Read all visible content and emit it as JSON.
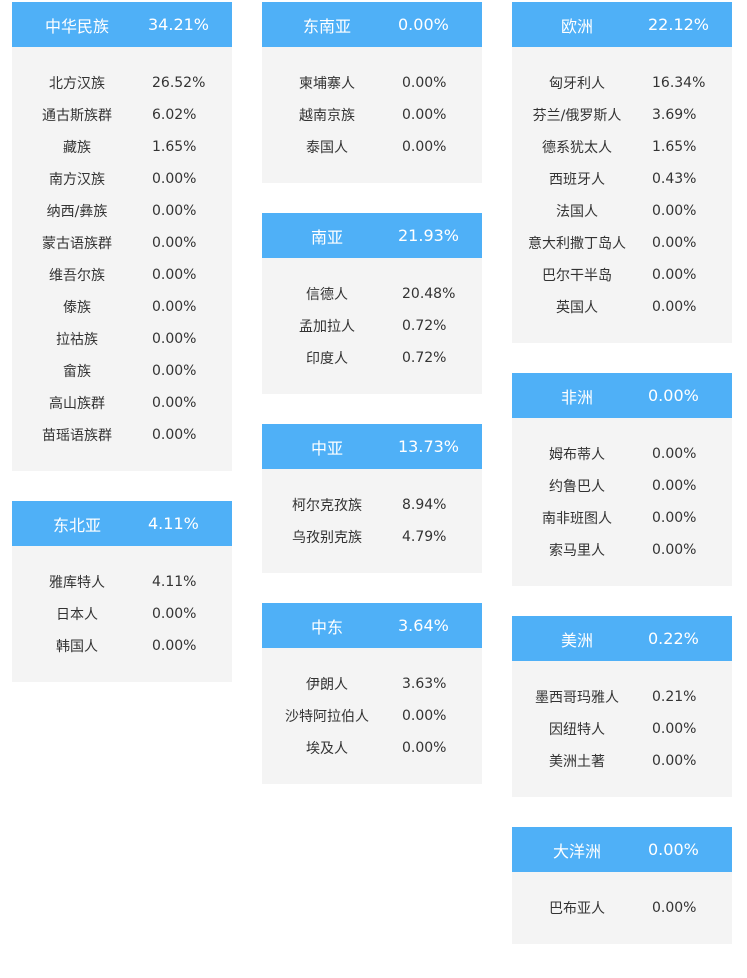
{
  "cards": [
    {
      "key": "c0",
      "region": "中华民族",
      "pct": "34.21%",
      "rows": [
        {
          "name": "北方汉族",
          "val": "26.52%"
        },
        {
          "name": "通古斯族群",
          "val": "6.02%"
        },
        {
          "name": "藏族",
          "val": "1.65%"
        },
        {
          "name": "南方汉族",
          "val": "0.00%"
        },
        {
          "name": "纳西/彝族",
          "val": "0.00%"
        },
        {
          "name": "蒙古语族群",
          "val": "0.00%"
        },
        {
          "name": "维吾尔族",
          "val": "0.00%"
        },
        {
          "name": "傣族",
          "val": "0.00%"
        },
        {
          "name": "拉祜族",
          "val": "0.00%"
        },
        {
          "name": "畲族",
          "val": "0.00%"
        },
        {
          "name": "高山族群",
          "val": "0.00%"
        },
        {
          "name": "苗瑶语族群",
          "val": "0.00%"
        }
      ]
    },
    {
      "key": "c1",
      "region": "东北亚",
      "pct": "4.11%",
      "rows": [
        {
          "name": "雅库特人",
          "val": "4.11%"
        },
        {
          "name": "日本人",
          "val": "0.00%"
        },
        {
          "name": "韩国人",
          "val": "0.00%"
        }
      ]
    },
    {
      "key": "c2",
      "region": "东南亚",
      "pct": "0.00%",
      "rows": [
        {
          "name": "柬埔寨人",
          "val": "0.00%"
        },
        {
          "name": "越南京族",
          "val": "0.00%"
        },
        {
          "name": "泰国人",
          "val": "0.00%"
        }
      ]
    },
    {
      "key": "c3",
      "region": "南亚",
      "pct": "21.93%",
      "rows": [
        {
          "name": "信德人",
          "val": "20.48%"
        },
        {
          "name": "孟加拉人",
          "val": "0.72%"
        },
        {
          "name": "印度人",
          "val": "0.72%"
        }
      ]
    },
    {
      "key": "c4",
      "region": "中亚",
      "pct": "13.73%",
      "rows": [
        {
          "name": "柯尔克孜族",
          "val": "8.94%"
        },
        {
          "name": "乌孜别克族",
          "val": "4.79%"
        }
      ]
    },
    {
      "key": "c5",
      "region": "中东",
      "pct": "3.64%",
      "rows": [
        {
          "name": "伊朗人",
          "val": "3.63%"
        },
        {
          "name": "沙特阿拉伯人",
          "val": "0.00%"
        },
        {
          "name": "埃及人",
          "val": "0.00%"
        }
      ]
    },
    {
      "key": "c6",
      "region": "欧洲",
      "pct": "22.12%",
      "rows": [
        {
          "name": "匈牙利人",
          "val": "16.34%"
        },
        {
          "name": "芬兰/俄罗斯人",
          "val": "3.69%"
        },
        {
          "name": "德系犹太人",
          "val": "1.65%"
        },
        {
          "name": "西班牙人",
          "val": "0.43%"
        },
        {
          "name": "法国人",
          "val": "0.00%"
        },
        {
          "name": "意大利撒丁岛人",
          "val": "0.00%"
        },
        {
          "name": "巴尔干半岛",
          "val": "0.00%"
        },
        {
          "name": "英国人",
          "val": "0.00%"
        }
      ]
    },
    {
      "key": "c7",
      "region": "非洲",
      "pct": "0.00%",
      "rows": [
        {
          "name": "姆布蒂人",
          "val": "0.00%"
        },
        {
          "name": "约鲁巴人",
          "val": "0.00%"
        },
        {
          "name": "南非班图人",
          "val": "0.00%"
        },
        {
          "name": "索马里人",
          "val": "0.00%"
        }
      ]
    },
    {
      "key": "c8",
      "region": "美洲",
      "pct": "0.22%",
      "rows": [
        {
          "name": "墨西哥玛雅人",
          "val": "0.21%"
        },
        {
          "name": "因纽特人",
          "val": "0.00%"
        },
        {
          "name": "美洲土著",
          "val": "0.00%"
        }
      ]
    },
    {
      "key": "c9",
      "region": "大洋洲",
      "pct": "0.00%",
      "rows": [
        {
          "name": "巴布亚人",
          "val": "0.00%"
        }
      ]
    }
  ],
  "colors": {
    "header_bg": "#4fb0f7",
    "card_bg": "#f4f4f4",
    "text": "#333333"
  }
}
